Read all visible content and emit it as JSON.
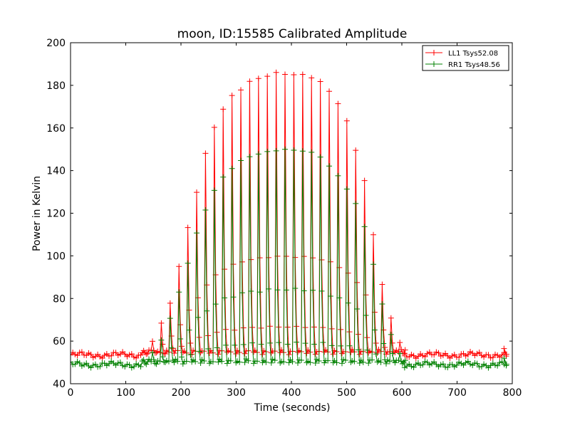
{
  "chart_data": {
    "type": "line",
    "title": "moon, ID:15585 Calibrated Amplitude",
    "xlabel": "Time (seconds)",
    "ylabel": "Power in Kelvin",
    "xlim": [
      0,
      800
    ],
    "ylim": [
      40,
      200
    ],
    "xticks": [
      "0",
      "100",
      "200",
      "300",
      "400",
      "500",
      "600",
      "700",
      "800"
    ],
    "yticks": [
      "40",
      "60",
      "80",
      "100",
      "120",
      "140",
      "160",
      "180",
      "200"
    ],
    "grid": false,
    "legend_position": "top-right",
    "marker": "plus",
    "scan_model": {
      "start": 130,
      "end": 605,
      "step_seconds": 16,
      "samples_per_step": 6,
      "sample_interval": 2.4,
      "baseline_x": [
        0,
        800
      ],
      "baseline_sample_interval": 4.1
    },
    "series": [
      {
        "name": "LL1 Tsys52.08",
        "color": "#ff0000",
        "baseline": 53.5,
        "envelope": [
          [
            130,
            55
          ],
          [
            150,
            60
          ],
          [
            168,
            70
          ],
          [
            184,
            80
          ],
          [
            200,
            98
          ],
          [
            216,
            117
          ],
          [
            232,
            133
          ],
          [
            248,
            151
          ],
          [
            264,
            163
          ],
          [
            280,
            170
          ],
          [
            296,
            176
          ],
          [
            312,
            179
          ],
          [
            328,
            182
          ],
          [
            344,
            183.5
          ],
          [
            360,
            185
          ],
          [
            376,
            185.5
          ],
          [
            392,
            185.5
          ],
          [
            408,
            185
          ],
          [
            424,
            184.5
          ],
          [
            440,
            184
          ],
          [
            456,
            181
          ],
          [
            472,
            176
          ],
          [
            488,
            171
          ],
          [
            504,
            161
          ],
          [
            520,
            147
          ],
          [
            536,
            133
          ],
          [
            552,
            104
          ],
          [
            568,
            83
          ],
          [
            584,
            68
          ],
          [
            600,
            57
          ],
          [
            605,
            55
          ]
        ]
      },
      {
        "name": "RR1 Tsys48.56",
        "color": "#008000",
        "baseline": 49.0,
        "envelope": [
          [
            130,
            50
          ],
          [
            150,
            55
          ],
          [
            168,
            62
          ],
          [
            184,
            72
          ],
          [
            200,
            86
          ],
          [
            216,
            99
          ],
          [
            232,
            113
          ],
          [
            248,
            124
          ],
          [
            264,
            132
          ],
          [
            280,
            138
          ],
          [
            296,
            142
          ],
          [
            312,
            145
          ],
          [
            328,
            147
          ],
          [
            344,
            148
          ],
          [
            360,
            149
          ],
          [
            376,
            149.5
          ],
          [
            392,
            150
          ],
          [
            408,
            149.5
          ],
          [
            424,
            149
          ],
          [
            440,
            148.5
          ],
          [
            456,
            146
          ],
          [
            472,
            141
          ],
          [
            488,
            137
          ],
          [
            504,
            130
          ],
          [
            520,
            123
          ],
          [
            536,
            112
          ],
          [
            552,
            92
          ],
          [
            568,
            74
          ],
          [
            584,
            61
          ],
          [
            600,
            52
          ],
          [
            605,
            50
          ]
        ]
      }
    ]
  }
}
